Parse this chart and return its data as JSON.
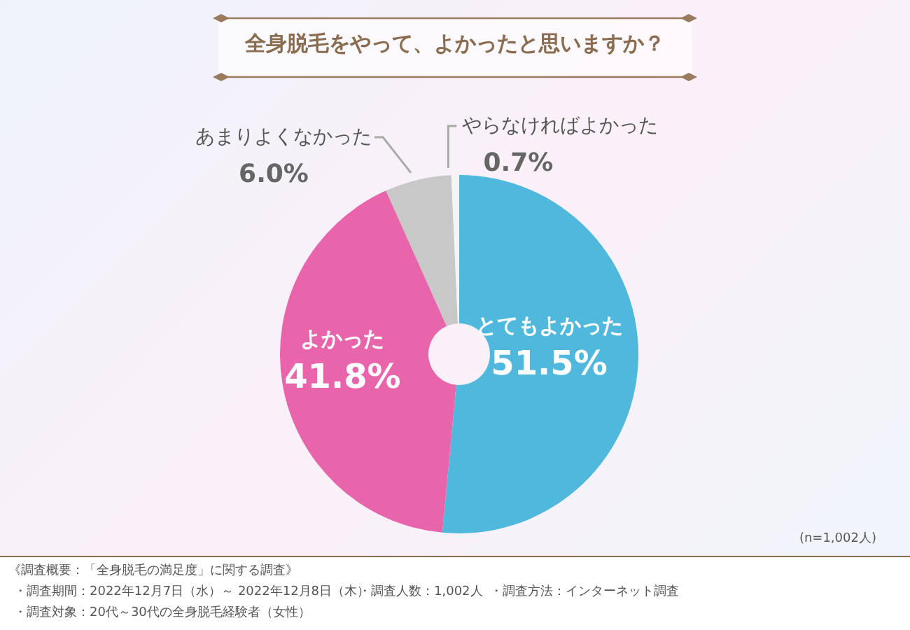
{
  "chart_data": {
    "type": "donut",
    "title": "全身脱毛をやって、よかったと思いますか？",
    "categories": [
      "とてもよかった",
      "よかった",
      "あまりよくなかった",
      "やらなければよかった"
    ],
    "values": [
      51.5,
      41.8,
      6.0,
      0.7
    ],
    "colors": [
      "#4fb8dc",
      "#e965ab",
      "#c8c8c8",
      "#f4f4f4"
    ],
    "value_labels": [
      "51.5%",
      "41.8%",
      "6.0%",
      "0.7%"
    ],
    "legend": false,
    "annotations": [
      "(n=1,002人)",
      "《調査概要：「全身脱毛の満足度」に関する調査》",
      "・調査期間：2022年12月7日（水）～ 2022年12月8日（木）",
      "・調査人数：1,002人",
      "・調査方法：インターネット調査",
      "・調査対象：20代～30代の全身脱毛経験者（女性）"
    ]
  }
}
